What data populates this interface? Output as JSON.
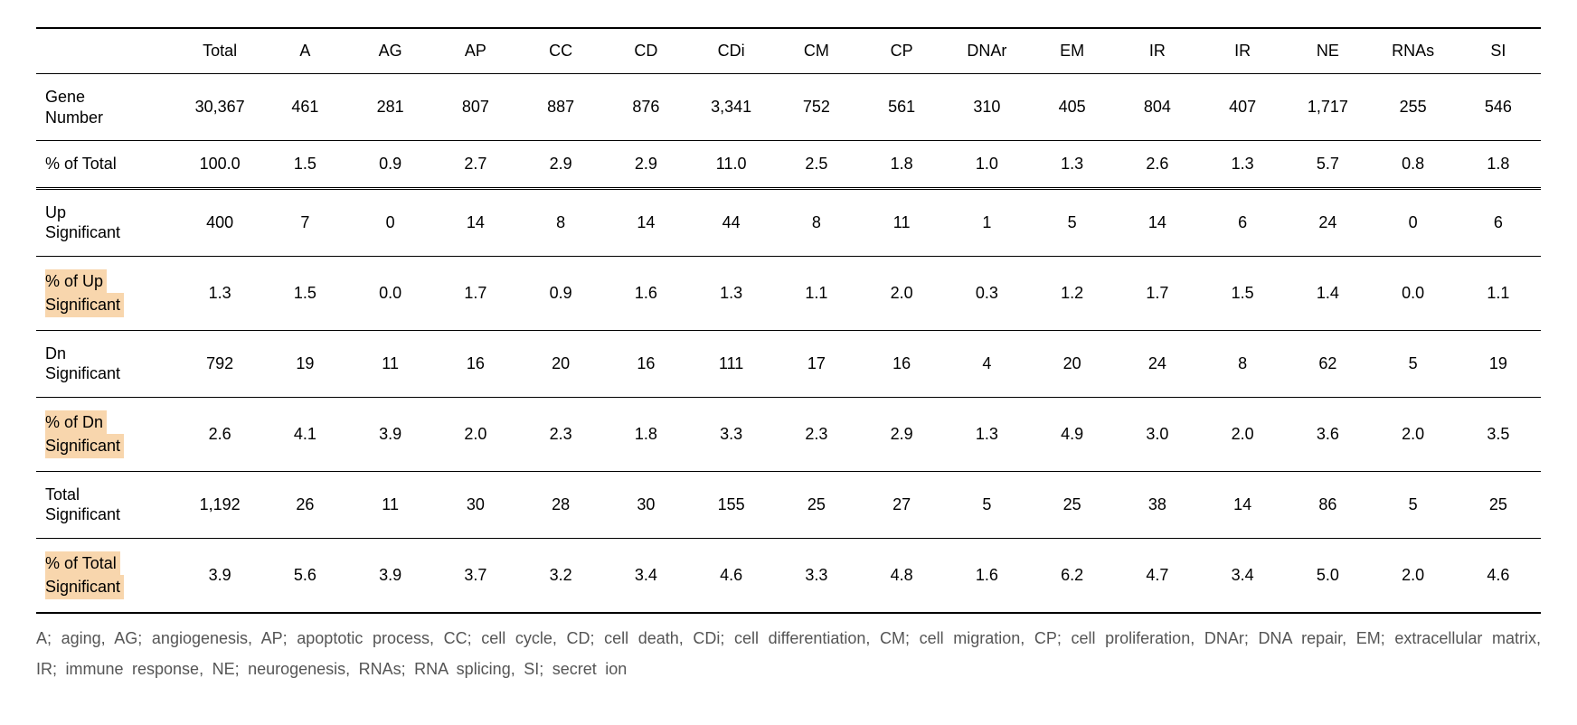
{
  "table": {
    "columns": [
      "",
      "Total",
      "A",
      "AG",
      "AP",
      "CC",
      "CD",
      "CDi",
      "CM",
      "CP",
      "DNAr",
      "EM",
      "IR",
      "IR",
      "NE",
      "RNAs",
      "SI"
    ],
    "rows": [
      {
        "label": "Gene\nNumber",
        "highlight": false,
        "cells": [
          "30,367",
          "461",
          "281",
          "807",
          "887",
          "876",
          "3,341",
          "752",
          "561",
          "310",
          "405",
          "804",
          "407",
          "1,717",
          "255",
          "546"
        ]
      },
      {
        "label": "% of Total",
        "highlight": false,
        "cells": [
          "100.0",
          "1.5",
          "0.9",
          "2.7",
          "2.9",
          "2.9",
          "11.0",
          "2.5",
          "1.8",
          "1.0",
          "1.3",
          "2.6",
          "1.3",
          "5.7",
          "0.8",
          "1.8"
        ]
      },
      {
        "label": "Up\nSignificant",
        "highlight": false,
        "cells": [
          "400",
          "7",
          "0",
          "14",
          "8",
          "14",
          "44",
          "8",
          "11",
          "1",
          "5",
          "14",
          "6",
          "24",
          "0",
          "6"
        ]
      },
      {
        "label": "% of Up\nSignificant",
        "highlight": true,
        "cells": [
          "1.3",
          "1.5",
          "0.0",
          "1.7",
          "0.9",
          "1.6",
          "1.3",
          "1.1",
          "2.0",
          "0.3",
          "1.2",
          "1.7",
          "1.5",
          "1.4",
          "0.0",
          "1.1"
        ]
      },
      {
        "label": "Dn\nSignificant",
        "highlight": false,
        "cells": [
          "792",
          "19",
          "11",
          "16",
          "20",
          "16",
          "111",
          "17",
          "16",
          "4",
          "20",
          "24",
          "8",
          "62",
          "5",
          "19"
        ]
      },
      {
        "label": "% of Dn\nSignificant",
        "highlight": true,
        "cells": [
          "2.6",
          "4.1",
          "3.9",
          "2.0",
          "2.3",
          "1.8",
          "3.3",
          "2.3",
          "2.9",
          "1.3",
          "4.9",
          "3.0",
          "2.0",
          "3.6",
          "2.0",
          "3.5"
        ]
      },
      {
        "label": "Total\nSignificant",
        "highlight": false,
        "cells": [
          "1,192",
          "26",
          "11",
          "30",
          "28",
          "30",
          "155",
          "25",
          "27",
          "5",
          "25",
          "38",
          "14",
          "86",
          "5",
          "25"
        ]
      },
      {
        "label": "% of Total\nSignificant",
        "highlight": true,
        "cells": [
          "3.9",
          "5.6",
          "3.9",
          "3.7",
          "3.2",
          "3.4",
          "4.6",
          "3.3",
          "4.8",
          "1.6",
          "6.2",
          "4.7",
          "3.4",
          "5.0",
          "2.0",
          "4.6"
        ]
      }
    ],
    "row_border_classes": [
      "sep-bottom",
      "dbl-bottom",
      "sep-bottom",
      "sep-bottom",
      "sep-bottom",
      "sep-bottom",
      "sep-bottom",
      "last-bottom"
    ],
    "colors": {
      "highlight_bg": "#f8d6ad",
      "text": "#000000",
      "footnote_text": "#555555",
      "border": "#000000",
      "background": "#ffffff"
    },
    "font_sizes": {
      "cell_pt": 14,
      "footnote_pt": 14
    }
  },
  "footnote": "A; aging, AG; angiogenesis, AP; apoptotic process, CC; cell cycle, CD; cell death, CDi; cell differentiation, CM; cell migration, CP; cell proliferation, DNAr; DNA repair, EM; extracellular matrix, IR; immune response, NE; neurogenesis, RNAs; RNA splicing, SI; secret ion"
}
